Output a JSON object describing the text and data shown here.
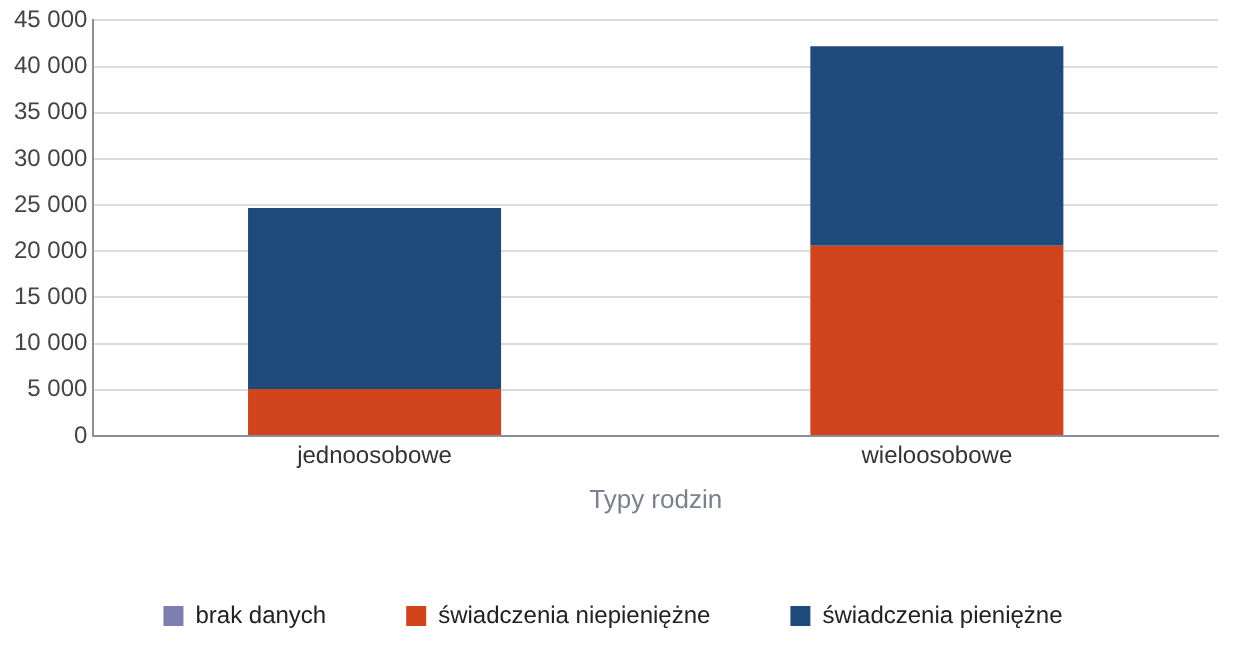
{
  "chart_data": {
    "type": "bar",
    "stacked": true,
    "xlabel": "Typy rodzin",
    "categories": [
      "jednoosobowe",
      "wieloosobowe"
    ],
    "series": [
      {
        "name": "brak danych",
        "color": "#7d7fb0",
        "values": [
          0,
          0
        ]
      },
      {
        "name": "świadczenia niepieniężne",
        "color": "#d2451c",
        "values": [
          5100,
          20600
        ]
      },
      {
        "name": "świadczenia pieniężne",
        "color": "#1f4a7c",
        "values": [
          19600,
          21600
        ]
      }
    ],
    "ylim": [
      0,
      45000
    ],
    "yticks": [
      {
        "value": 0,
        "label": "0"
      },
      {
        "value": 5000,
        "label": "5 000"
      },
      {
        "value": 10000,
        "label": "10 000"
      },
      {
        "value": 15000,
        "label": "15 000"
      },
      {
        "value": 20000,
        "label": "20 000"
      },
      {
        "value": 25000,
        "label": "25 000"
      },
      {
        "value": 30000,
        "label": "30 000"
      },
      {
        "value": 35000,
        "label": "35 000"
      },
      {
        "value": 40000,
        "label": "40 000"
      },
      {
        "value": 45000,
        "label": "45 000"
      }
    ],
    "grid": "y",
    "legend": "bottom"
  }
}
